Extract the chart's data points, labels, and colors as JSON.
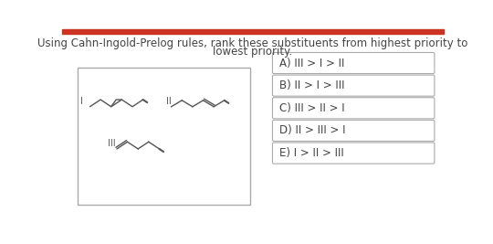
{
  "title_line1": "Using Cahn-Ingold-Prelog rules, rank these substituents from highest priority to",
  "title_line2": "lowest priority.",
  "title_fontsize": 8.5,
  "title_color": "#444444",
  "header_bar_color": "#cc3322",
  "bg_color": "#ffffff",
  "answer_options": [
    "A) III > I > II",
    "B) II > I > III",
    "C) III > II > I",
    "D) II > III > I",
    "E) I > II > III"
  ],
  "answer_box_color": "#ffffff",
  "answer_border_color": "#aaaaaa",
  "answer_fontsize": 8.5,
  "molecule_box_color": "#ffffff",
  "molecule_border_color": "#aaaaaa"
}
